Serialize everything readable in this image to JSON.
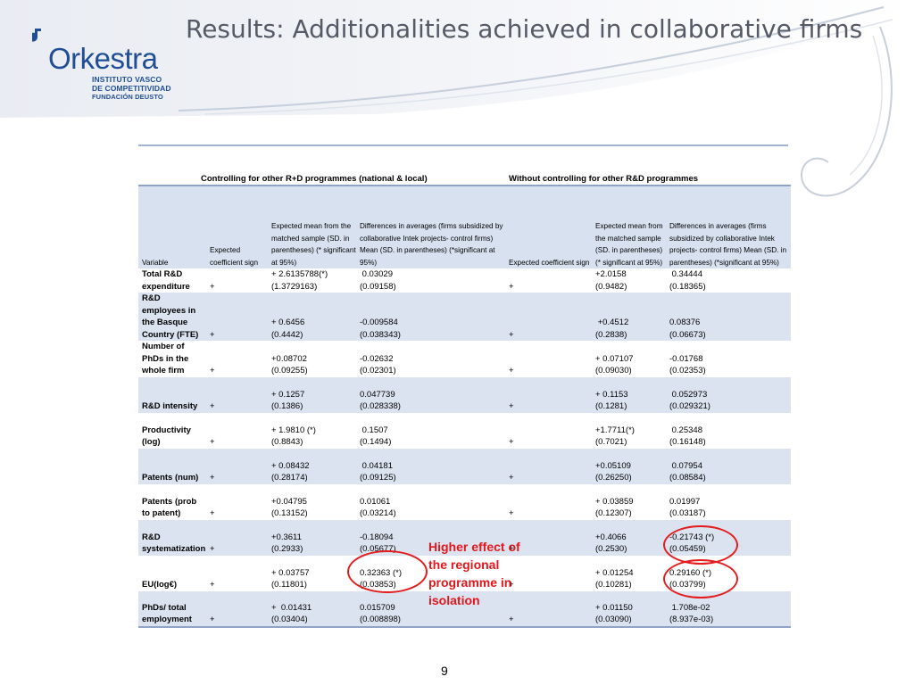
{
  "header": {
    "title": "Results: Additionalities achieved in collaborative firms",
    "logo": {
      "name": "Orkestra",
      "subtitle_lines": [
        "INSTITUTO VASCO",
        "DE COMPETITIVIDAD",
        "FUNDACIÓN DEUSTO"
      ]
    }
  },
  "table": {
    "group_headers": [
      "Controlling for other R+D programmes (national & local)",
      "Without controlling for other R&D programmes"
    ],
    "column_headers": [
      "Variable",
      "Expected coefficient sign",
      "Expected mean  from the matched sample (SD. in parentheses) (* significant at 95%)",
      "Differences in averages (firms subsidized by collaborative Intek projects- control firms) Mean (SD. in parentheses) (*significant at 95%)",
      "Expected coefficient sign",
      "Expected mean from the matched sample (SD. in parentheses) (* significant at 95%)",
      "Differences in averages (firms subsidized by collaborative Intek projects- control firms) Mean (SD. in parentheses)  (*significant at 95%)"
    ],
    "rows": [
      {
        "variable": "Total R&D expenditure",
        "sign1": "+",
        "mean1": "+ 2.6135788(*)",
        "sd1": "(1.3729163)",
        "diff1": " 0.03029",
        "dsd1": "(0.09158)",
        "sign2": "+",
        "mean2": "+2.0158",
        "sd2": "(0.9482)",
        "diff2": " 0.34444",
        "dsd2": "(0.18365)"
      },
      {
        "variable": "R&D employees in the Basque Country (FTE)",
        "sign1": "+",
        "mean1": "+ 0.6456",
        "sd1": "(0.4442)",
        "diff1": "-0.009584",
        "dsd1": "(0.038343)",
        "sign2": "+",
        "mean2": " +0.4512",
        "sd2": "(0.2838)",
        "diff2": "0.08376",
        "dsd2": "(0.06673)"
      },
      {
        "variable": "Number of PhDs in the whole firm",
        "sign1": "+",
        "mean1": "+0.08702",
        "sd1": "(0.09255)",
        "diff1": "-0.02632",
        "dsd1": "(0.02301)",
        "sign2": "+",
        "mean2": "+ 0.07107",
        "sd2": "(0.09030)",
        "diff2": "-0.01768",
        "dsd2": "(0.02353)"
      },
      {
        "variable": "R&D intensity",
        "sign1": "+",
        "mean1": "+ 0.1257",
        "sd1": "(0.1386)",
        "diff1": "0.047739",
        "dsd1": "(0.028338)",
        "sign2": "+",
        "mean2": "+ 0.1153",
        "sd2": "(0.1281)",
        "diff2": " 0.052973",
        "dsd2": "(0.029321)"
      },
      {
        "variable": "Productivity (log)",
        "sign1": "+",
        "mean1": "+ 1.9810 (*)",
        "sd1": "(0.8843)",
        "diff1": " 0.1507",
        "dsd1": "(0.1494)",
        "sign2": "+",
        "mean2": "+1.7711(*)",
        "sd2": "(0.7021)",
        "diff2": " 0.25348",
        "dsd2": "(0.16148)"
      },
      {
        "variable": "Patents (num)",
        "sign1": "+",
        "mean1": "+ 0.08432",
        "sd1": "(0.28174)",
        "diff1": " 0.04181",
        "dsd1": "(0.09125)",
        "sign2": "+",
        "mean2": "+0.05109",
        "sd2": "(0.26250)",
        "diff2": " 0.07954",
        "dsd2": "(0.08584)"
      },
      {
        "variable": "Patents (prob to patent)",
        "sign1": "+",
        "mean1": "+0.04795",
        "sd1": "(0.13152)",
        "diff1": "0.01061",
        "dsd1": "(0.03214)",
        "sign2": "+",
        "mean2": "+ 0.03859",
        "sd2": "(0.12307)",
        "diff2": "0.01997",
        "dsd2": "(0.03187)"
      },
      {
        "variable": "R&D systematization",
        "sign1": "+",
        "mean1": "+0.3611",
        "sd1": "(0.2933)",
        "diff1": "-0.18094",
        "dsd1": "(0.05677)",
        "sign2": "+",
        "mean2": "+0.4066",
        "sd2": "(0.2530)",
        "diff2": "-0.21743 (*)",
        "dsd2": "(0.05459)"
      },
      {
        "variable": "EU(log€)",
        "sign1": "+",
        "mean1": "+ 0.03757",
        "sd1": "(0.11801)",
        "diff1": "0.32363 (*)",
        "dsd1": "(0.03853)",
        "sign2": "+",
        "mean2": "+ 0.01254",
        "sd2": "(0.10281)",
        "diff2": "0.29160 (*)",
        "dsd2": "(0.03799)"
      },
      {
        "variable": "PhDs/ total employment",
        "sign1": "+",
        "mean1": "+  0.01431",
        "sd1": "(0.03404)",
        "diff1": "0.015709",
        "dsd1": "(0.008898)",
        "sign2": "+",
        "mean2": "+ 0.01150",
        "sd2": "(0.03090)",
        "diff2": " 1.708e-02",
        "dsd2": "(8.937e-03)"
      }
    ]
  },
  "annotation": "Higher effect of the regional programme in isolation",
  "page_number": "9",
  "colors": {
    "title": "#555a66",
    "brand": "#1f4e96",
    "row_band": "#dbe3f0",
    "annotation": "#e5161b"
  }
}
